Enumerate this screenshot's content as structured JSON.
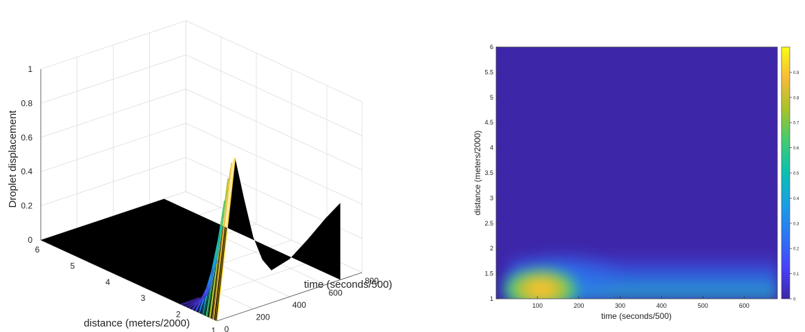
{
  "chart_data": [
    {
      "type": "surface",
      "title": "",
      "xlabel": "time (seconds/500)",
      "ylabel": "distance (meters/2000)",
      "zlabel": "Droplet displacement",
      "xlim": [
        0,
        800
      ],
      "ylim": [
        1,
        6
      ],
      "zlim": [
        0,
        1
      ],
      "x_ticks": [
        "0",
        "200",
        "400",
        "600",
        "800"
      ],
      "y_ticks": [
        "1",
        "2",
        "3",
        "4",
        "5",
        "6"
      ],
      "z_ticks": [
        "0",
        "0.2",
        "0.4",
        "0.6",
        "0.8",
        "1"
      ],
      "grid": true,
      "edge_color": "#000000",
      "front_profile": {
        "distance": [
          1.0,
          1.1,
          1.2,
          1.3,
          1.4,
          1.5,
          1.6,
          1.7,
          1.8,
          1.9,
          2.0
        ],
        "time": 100,
        "z": [
          0.92,
          0.88,
          0.78,
          0.64,
          0.48,
          0.32,
          0.19,
          0.1,
          0.04,
          0.01,
          0.0
        ]
      },
      "ridge_profile": {
        "distance": 1,
        "time": [
          0,
          50,
          100,
          150,
          200,
          250,
          300,
          400,
          500,
          600,
          680
        ],
        "z": [
          0.0,
          0.45,
          0.92,
          0.66,
          0.42,
          0.27,
          0.19,
          0.22,
          0.3,
          0.39,
          0.45
        ]
      }
    },
    {
      "type": "heatmap",
      "title": "",
      "xlabel": "time (seconds/500)",
      "ylabel": "distance (meters/2000)",
      "xlim": [
        0,
        680
      ],
      "ylim": [
        1,
        6
      ],
      "x_ticks": [
        "100",
        "200",
        "300",
        "400",
        "500",
        "600"
      ],
      "y_ticks": [
        "1",
        "1.5",
        "2",
        "2.5",
        "3",
        "3.5",
        "4",
        "4.5",
        "5",
        "5.5",
        "6"
      ],
      "colorbar_ticks": [
        "0",
        "0.1",
        "0.2",
        "0.3",
        "0.4",
        "0.5",
        "0.6",
        "0.7",
        "0.8",
        "0.9"
      ],
      "colorbar_range": [
        0,
        1
      ],
      "colormap": "parula",
      "peak": {
        "time": 100,
        "distance": 1.1,
        "value": 0.92
      }
    }
  ]
}
